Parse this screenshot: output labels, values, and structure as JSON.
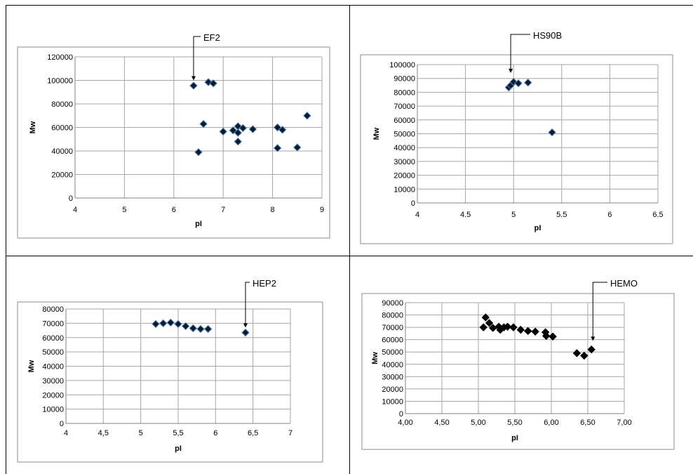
{
  "chart_data": [
    {
      "type": "scatter",
      "annotation": "EF2",
      "xlabel": "pI",
      "ylabel": "Mw",
      "xlim": [
        4,
        9
      ],
      "ylim": [
        0,
        120000
      ],
      "xticks": [
        "4",
        "5",
        "6",
        "7",
        "8",
        "9"
      ],
      "yticks": [
        "0",
        "20000",
        "40000",
        "60000",
        "80000",
        "100000",
        "120000"
      ],
      "grid": true,
      "arrow_point": [
        6.4,
        100000
      ],
      "points": [
        [
          6.4,
          95500
        ],
        [
          6.5,
          39000
        ],
        [
          6.6,
          63000
        ],
        [
          6.7,
          98500
        ],
        [
          6.8,
          97500
        ],
        [
          7.0,
          56500
        ],
        [
          7.2,
          57500
        ],
        [
          7.3,
          61000
        ],
        [
          7.3,
          55500
        ],
        [
          7.3,
          48000
        ],
        [
          7.4,
          59500
        ],
        [
          7.6,
          58500
        ],
        [
          8.1,
          60000
        ],
        [
          8.1,
          42500
        ],
        [
          8.2,
          58000
        ],
        [
          8.5,
          43000
        ],
        [
          8.7,
          70000
        ]
      ]
    },
    {
      "type": "scatter",
      "annotation": "HS90B",
      "xlabel": "pI",
      "ylabel": "Mw",
      "xlim": [
        4,
        6.5
      ],
      "ylim": [
        0,
        100000
      ],
      "xticks": [
        "4",
        "4.5",
        "5",
        "5.5",
        "6",
        "6.5"
      ],
      "yticks": [
        "0",
        "10000",
        "20000",
        "30000",
        "40000",
        "50000",
        "60000",
        "70000",
        "80000",
        "90000",
        "100000"
      ],
      "grid": true,
      "arrow_point": [
        4.97,
        94000
      ],
      "points": [
        [
          4.95,
          83500
        ],
        [
          4.97,
          85000
        ],
        [
          5.0,
          87500
        ],
        [
          5.05,
          86500
        ],
        [
          5.15,
          87000
        ],
        [
          5.4,
          51000
        ]
      ]
    },
    {
      "type": "scatter",
      "annotation": "HEP2",
      "xlabel": "pI",
      "ylabel": "Mw",
      "xlim": [
        4,
        7
      ],
      "ylim": [
        0,
        80000
      ],
      "xticks": [
        "4",
        "4,5",
        "5",
        "5,5",
        "6",
        "6,5",
        "7"
      ],
      "yticks": [
        "0",
        "10000",
        "20000",
        "30000",
        "40000",
        "50000",
        "60000",
        "70000",
        "80000"
      ],
      "grid": true,
      "arrow_point": [
        6.4,
        67000
      ],
      "points": [
        [
          5.2,
          69500
        ],
        [
          5.3,
          70000
        ],
        [
          5.4,
          70500
        ],
        [
          5.5,
          69500
        ],
        [
          5.6,
          68000
        ],
        [
          5.7,
          66500
        ],
        [
          5.8,
          66000
        ],
        [
          5.9,
          66000
        ],
        [
          6.4,
          63500
        ]
      ]
    },
    {
      "type": "scatter",
      "annotation": "HEMO",
      "xlabel": "pI",
      "ylabel": "Mw",
      "xlim": [
        4,
        7
      ],
      "ylim": [
        0,
        90000
      ],
      "xticks": [
        "4,00",
        "4,50",
        "5,00",
        "5,50",
        "6,00",
        "6,50",
        "7,00"
      ],
      "yticks": [
        "0",
        "10000",
        "20000",
        "30000",
        "40000",
        "50000",
        "60000",
        "70000",
        "80000",
        "90000"
      ],
      "grid": true,
      "arrow_point": [
        6.57,
        59000
      ],
      "points": [
        [
          5.07,
          70000
        ],
        [
          5.1,
          78000
        ],
        [
          5.15,
          73500
        ],
        [
          5.2,
          69500
        ],
        [
          5.28,
          70500
        ],
        [
          5.3,
          68000
        ],
        [
          5.35,
          70000
        ],
        [
          5.4,
          70500
        ],
        [
          5.48,
          70000
        ],
        [
          5.58,
          68000
        ],
        [
          5.68,
          67000
        ],
        [
          5.78,
          66500
        ],
        [
          5.92,
          66000
        ],
        [
          5.93,
          63000
        ],
        [
          6.02,
          62500
        ],
        [
          6.35,
          49000
        ],
        [
          6.45,
          47000
        ],
        [
          6.55,
          52000
        ]
      ]
    }
  ]
}
